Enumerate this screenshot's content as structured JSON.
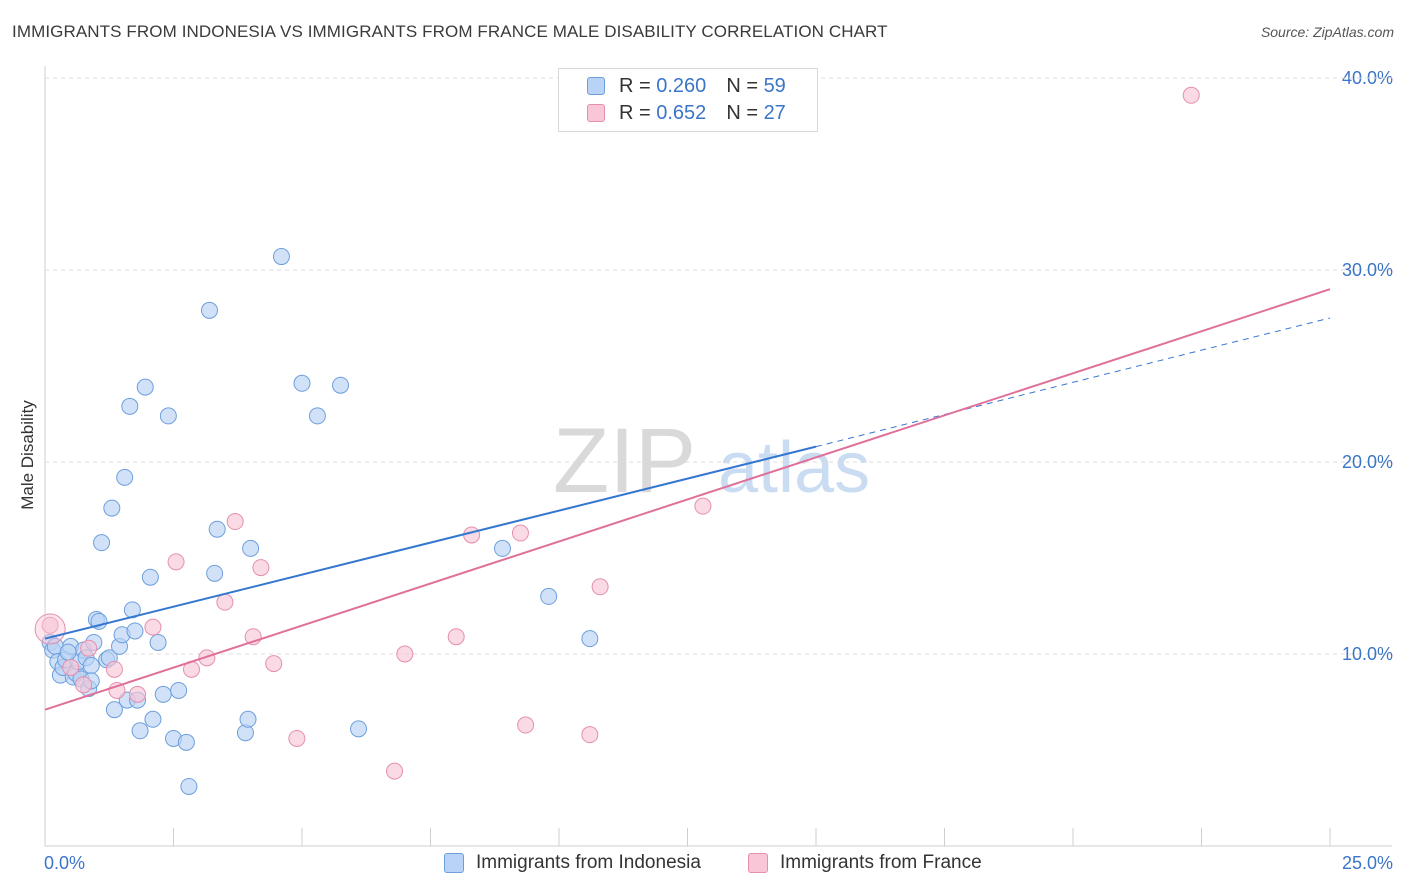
{
  "title": "IMMIGRANTS FROM INDONESIA VS IMMIGRANTS FROM FRANCE MALE DISABILITY CORRELATION CHART",
  "source": "Source: ZipAtlas.com",
  "watermark": {
    "zip": "ZIP",
    "atlas": "atlas"
  },
  "legend_top": [
    {
      "r_label": "R =",
      "r_value": "0.260",
      "n_label": "N =",
      "n_value": "59"
    },
    {
      "r_label": "R =",
      "r_value": "0.652",
      "n_label": "N =",
      "n_value": "27"
    }
  ],
  "colors": {
    "indonesia_fill": "#b8d3f5",
    "indonesia_stroke": "#6d9fdc",
    "indonesia_line": "#3577d0",
    "france_fill": "#f8c6d6",
    "france_stroke": "#e58fae",
    "france_line": "#e0709a",
    "axis_tick_text": "#3b75c8",
    "grid": "#dcdcdc"
  },
  "chart_data": {
    "type": "scatter",
    "title": "IMMIGRANTS FROM INDONESIA VS IMMIGRANTS FROM FRANCE MALE DISABILITY CORRELATION CHART",
    "xlabel": "",
    "ylabel": "Male Disability",
    "xlim": [
      0,
      25
    ],
    "ylim": [
      0,
      40
    ],
    "x_tick_labels": [
      "0.0%",
      "25.0%"
    ],
    "y_ticks": [
      10,
      20,
      30,
      40
    ],
    "y_tick_labels": [
      "10.0%",
      "20.0%",
      "30.0%",
      "40.0%"
    ],
    "legend": [
      "Immigrants from Indonesia",
      "Immigrants from France"
    ],
    "series": [
      {
        "name": "Immigrants from Indonesia",
        "r": 0.26,
        "n": 59,
        "trend": {
          "x0": 0,
          "y0": 10.8,
          "x1": 15.0,
          "y1": 20.8,
          "dash_x1": 25.0,
          "dash_y1": 27.5
        },
        "points": [
          [
            0.1,
            10.6
          ],
          [
            0.15,
            10.2
          ],
          [
            0.2,
            10.4
          ],
          [
            0.25,
            9.6
          ],
          [
            0.3,
            8.9
          ],
          [
            0.35,
            9.3
          ],
          [
            0.4,
            9.7
          ],
          [
            0.5,
            10.4
          ],
          [
            0.55,
            8.8
          ],
          [
            0.6,
            9.0
          ],
          [
            0.65,
            9.6
          ],
          [
            0.7,
            8.7
          ],
          [
            0.75,
            10.2
          ],
          [
            0.8,
            9.8
          ],
          [
            0.85,
            8.2
          ],
          [
            0.9,
            9.4
          ],
          [
            0.95,
            10.6
          ],
          [
            1.0,
            11.8
          ],
          [
            1.05,
            11.7
          ],
          [
            1.1,
            15.8
          ],
          [
            1.2,
            9.7
          ],
          [
            1.25,
            9.8
          ],
          [
            1.3,
            17.6
          ],
          [
            1.35,
            7.1
          ],
          [
            1.45,
            10.4
          ],
          [
            1.5,
            11.0
          ],
          [
            1.55,
            19.2
          ],
          [
            1.6,
            7.6
          ],
          [
            1.65,
            22.9
          ],
          [
            1.7,
            12.3
          ],
          [
            1.75,
            11.2
          ],
          [
            1.8,
            7.6
          ],
          [
            1.85,
            6.0
          ],
          [
            1.95,
            23.9
          ],
          [
            2.05,
            14.0
          ],
          [
            2.1,
            6.6
          ],
          [
            2.2,
            10.6
          ],
          [
            2.3,
            7.9
          ],
          [
            2.4,
            22.4
          ],
          [
            2.5,
            5.6
          ],
          [
            2.6,
            8.1
          ],
          [
            2.75,
            5.4
          ],
          [
            2.8,
            3.1
          ],
          [
            3.2,
            27.9
          ],
          [
            3.3,
            14.2
          ],
          [
            3.35,
            16.5
          ],
          [
            3.9,
            5.9
          ],
          [
            3.95,
            6.6
          ],
          [
            4.0,
            15.5
          ],
          [
            4.6,
            30.7
          ],
          [
            5.0,
            24.1
          ],
          [
            5.3,
            22.4
          ],
          [
            5.75,
            24.0
          ],
          [
            6.1,
            6.1
          ],
          [
            8.9,
            15.5
          ],
          [
            9.8,
            13.0
          ],
          [
            10.6,
            10.8
          ],
          [
            0.45,
            10.1
          ],
          [
            0.9,
            8.6
          ]
        ]
      },
      {
        "name": "Immigrants from France",
        "r": 0.652,
        "n": 27,
        "trend": {
          "x0": 0,
          "y0": 7.1,
          "x1": 25.0,
          "y1": 29.0
        },
        "points": [
          [
            0.1,
            11.5
          ],
          [
            0.5,
            9.3
          ],
          [
            0.75,
            8.4
          ],
          [
            0.85,
            10.3
          ],
          [
            1.35,
            9.2
          ],
          [
            1.4,
            8.1
          ],
          [
            1.8,
            7.9
          ],
          [
            2.1,
            11.4
          ],
          [
            2.55,
            14.8
          ],
          [
            2.85,
            9.2
          ],
          [
            3.15,
            9.8
          ],
          [
            3.5,
            12.7
          ],
          [
            3.7,
            16.9
          ],
          [
            4.05,
            10.9
          ],
          [
            4.2,
            14.5
          ],
          [
            4.45,
            9.5
          ],
          [
            4.9,
            5.6
          ],
          [
            6.8,
            3.9
          ],
          [
            7.0,
            10.0
          ],
          [
            8.0,
            10.9
          ],
          [
            8.3,
            16.2
          ],
          [
            9.25,
            16.3
          ],
          [
            9.35,
            6.3
          ],
          [
            10.6,
            5.8
          ],
          [
            10.8,
            13.5
          ],
          [
            12.8,
            17.7
          ],
          [
            22.3,
            39.1
          ]
        ]
      }
    ]
  }
}
